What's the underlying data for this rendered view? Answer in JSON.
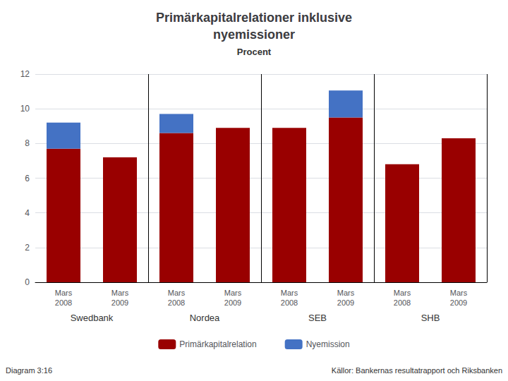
{
  "chart_data": {
    "type": "bar",
    "title": "Primärkapitalrelationer inklusive\nnyemissioner",
    "subtitle": "Procent",
    "categories": [
      "Mars\n2008",
      "Mars\n2009",
      "Mars\n2008",
      "Mars\n2009",
      "Mars\n2008",
      "Mars\n2009",
      "Mars\n2008",
      "Mars\n2009"
    ],
    "groups": [
      "Swedbank",
      "Nordea",
      "SEB",
      "SHB"
    ],
    "series": [
      {
        "name": "Primärkapitalrelation",
        "color": "#990000",
        "values": [
          7.7,
          7.2,
          8.6,
          8.9,
          8.9,
          9.5,
          6.8,
          8.3
        ]
      },
      {
        "name": "Nyemission",
        "color": "#4472C4",
        "values": [
          1.5,
          0.0,
          1.1,
          0.0,
          0.0,
          1.55,
          0.0,
          0.0
        ]
      }
    ],
    "stacked": true,
    "ylim": [
      0,
      12
    ],
    "yticks": [
      0,
      2,
      4,
      6,
      8,
      10,
      12
    ],
    "grid": true,
    "legend": "bottom",
    "annotations": [
      "Diagram 3:16",
      "Källor: Bankernas resultatrapport och Riksbanken"
    ]
  }
}
